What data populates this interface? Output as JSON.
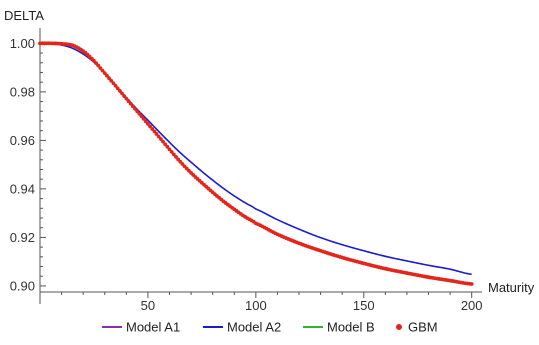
{
  "chart_data": {
    "type": "line",
    "title": "",
    "xlabel": "Maturity",
    "ylabel": "DELTA",
    "xlim": [
      0,
      202
    ],
    "ylim": [
      0.8975,
      1.0055
    ],
    "x_ticks": [
      50,
      100,
      150,
      200
    ],
    "y_ticks": [
      0.9,
      0.92,
      0.94,
      0.96,
      0.98,
      1.0
    ],
    "x_tick_labels": [
      "50",
      "100",
      "150",
      "200"
    ],
    "y_tick_labels": [
      "0.90",
      "0.92",
      "0.94",
      "0.96",
      "0.98",
      "1.00"
    ],
    "grid": false,
    "legend_position": "bottom",
    "series": [
      {
        "name": "Model A1",
        "style": "line",
        "color": "#8b2fa8",
        "x": [
          0,
          5,
          10,
          15,
          20,
          25,
          30,
          35,
          40,
          45,
          50,
          55,
          60,
          65,
          70,
          75,
          80,
          85,
          90,
          95,
          100,
          110,
          120,
          130,
          140,
          150,
          160,
          170,
          180,
          190,
          200
        ],
        "y": [
          1.0,
          1.0,
          0.9998,
          0.9992,
          0.9968,
          0.9928,
          0.9877,
          0.9825,
          0.9772,
          0.972,
          0.9668,
          0.9616,
          0.9563,
          0.9512,
          0.9466,
          0.9425,
          0.9386,
          0.9349,
          0.9316,
          0.9285,
          0.9258,
          0.9213,
          0.9176,
          0.9145,
          0.9117,
          0.9093,
          0.9071,
          0.9053,
          0.9036,
          0.9022,
          0.9008
        ]
      },
      {
        "name": "Model A2",
        "style": "line",
        "color": "#1c1ccc",
        "x": [
          0,
          5,
          10,
          15,
          20,
          25,
          30,
          35,
          40,
          45,
          50,
          55,
          60,
          65,
          70,
          75,
          80,
          85,
          90,
          95,
          100,
          110,
          120,
          130,
          140,
          150,
          160,
          170,
          180,
          190,
          200
        ],
        "y": [
          1.0,
          0.9999,
          0.9993,
          0.998,
          0.9956,
          0.9922,
          0.9878,
          0.9827,
          0.9776,
          0.9728,
          0.9683,
          0.9637,
          0.9592,
          0.9549,
          0.951,
          0.9472,
          0.9436,
          0.9402,
          0.9371,
          0.9343,
          0.9317,
          0.9273,
          0.9234,
          0.9199,
          0.917,
          0.9145,
          0.9122,
          0.9103,
          0.9085,
          0.9069,
          0.9048
        ]
      },
      {
        "name": "Model B",
        "style": "line",
        "color": "#2fb52f",
        "x": [
          0,
          5,
          10,
          15,
          20,
          25,
          30,
          35,
          40,
          45,
          50,
          55,
          60,
          65,
          70,
          75,
          80,
          85,
          90,
          95,
          100,
          110,
          120,
          130,
          140,
          150,
          160,
          170,
          180,
          190,
          200
        ],
        "y": [
          1.0,
          1.0,
          0.9998,
          0.9992,
          0.9968,
          0.9928,
          0.9877,
          0.9825,
          0.9772,
          0.972,
          0.9668,
          0.9616,
          0.9563,
          0.9512,
          0.9466,
          0.9425,
          0.9386,
          0.9349,
          0.9316,
          0.9285,
          0.9258,
          0.9213,
          0.9176,
          0.9145,
          0.9117,
          0.9093,
          0.9071,
          0.9053,
          0.9036,
          0.9022,
          0.9008
        ]
      },
      {
        "name": "GBM",
        "style": "points",
        "color": "#e3261b",
        "x": [
          0,
          5,
          10,
          15,
          20,
          25,
          30,
          35,
          40,
          45,
          50,
          55,
          60,
          65,
          70,
          75,
          80,
          85,
          90,
          95,
          100,
          110,
          120,
          130,
          140,
          150,
          160,
          170,
          180,
          190,
          200
        ],
        "y": [
          1.0,
          1.0,
          0.9998,
          0.9992,
          0.9968,
          0.9928,
          0.9877,
          0.9825,
          0.9772,
          0.972,
          0.9668,
          0.9616,
          0.9563,
          0.9512,
          0.9466,
          0.9425,
          0.9386,
          0.9349,
          0.9316,
          0.9285,
          0.9258,
          0.9213,
          0.9176,
          0.9145,
          0.9117,
          0.9093,
          0.9071,
          0.9053,
          0.9036,
          0.9022,
          0.9008
        ]
      }
    ]
  }
}
